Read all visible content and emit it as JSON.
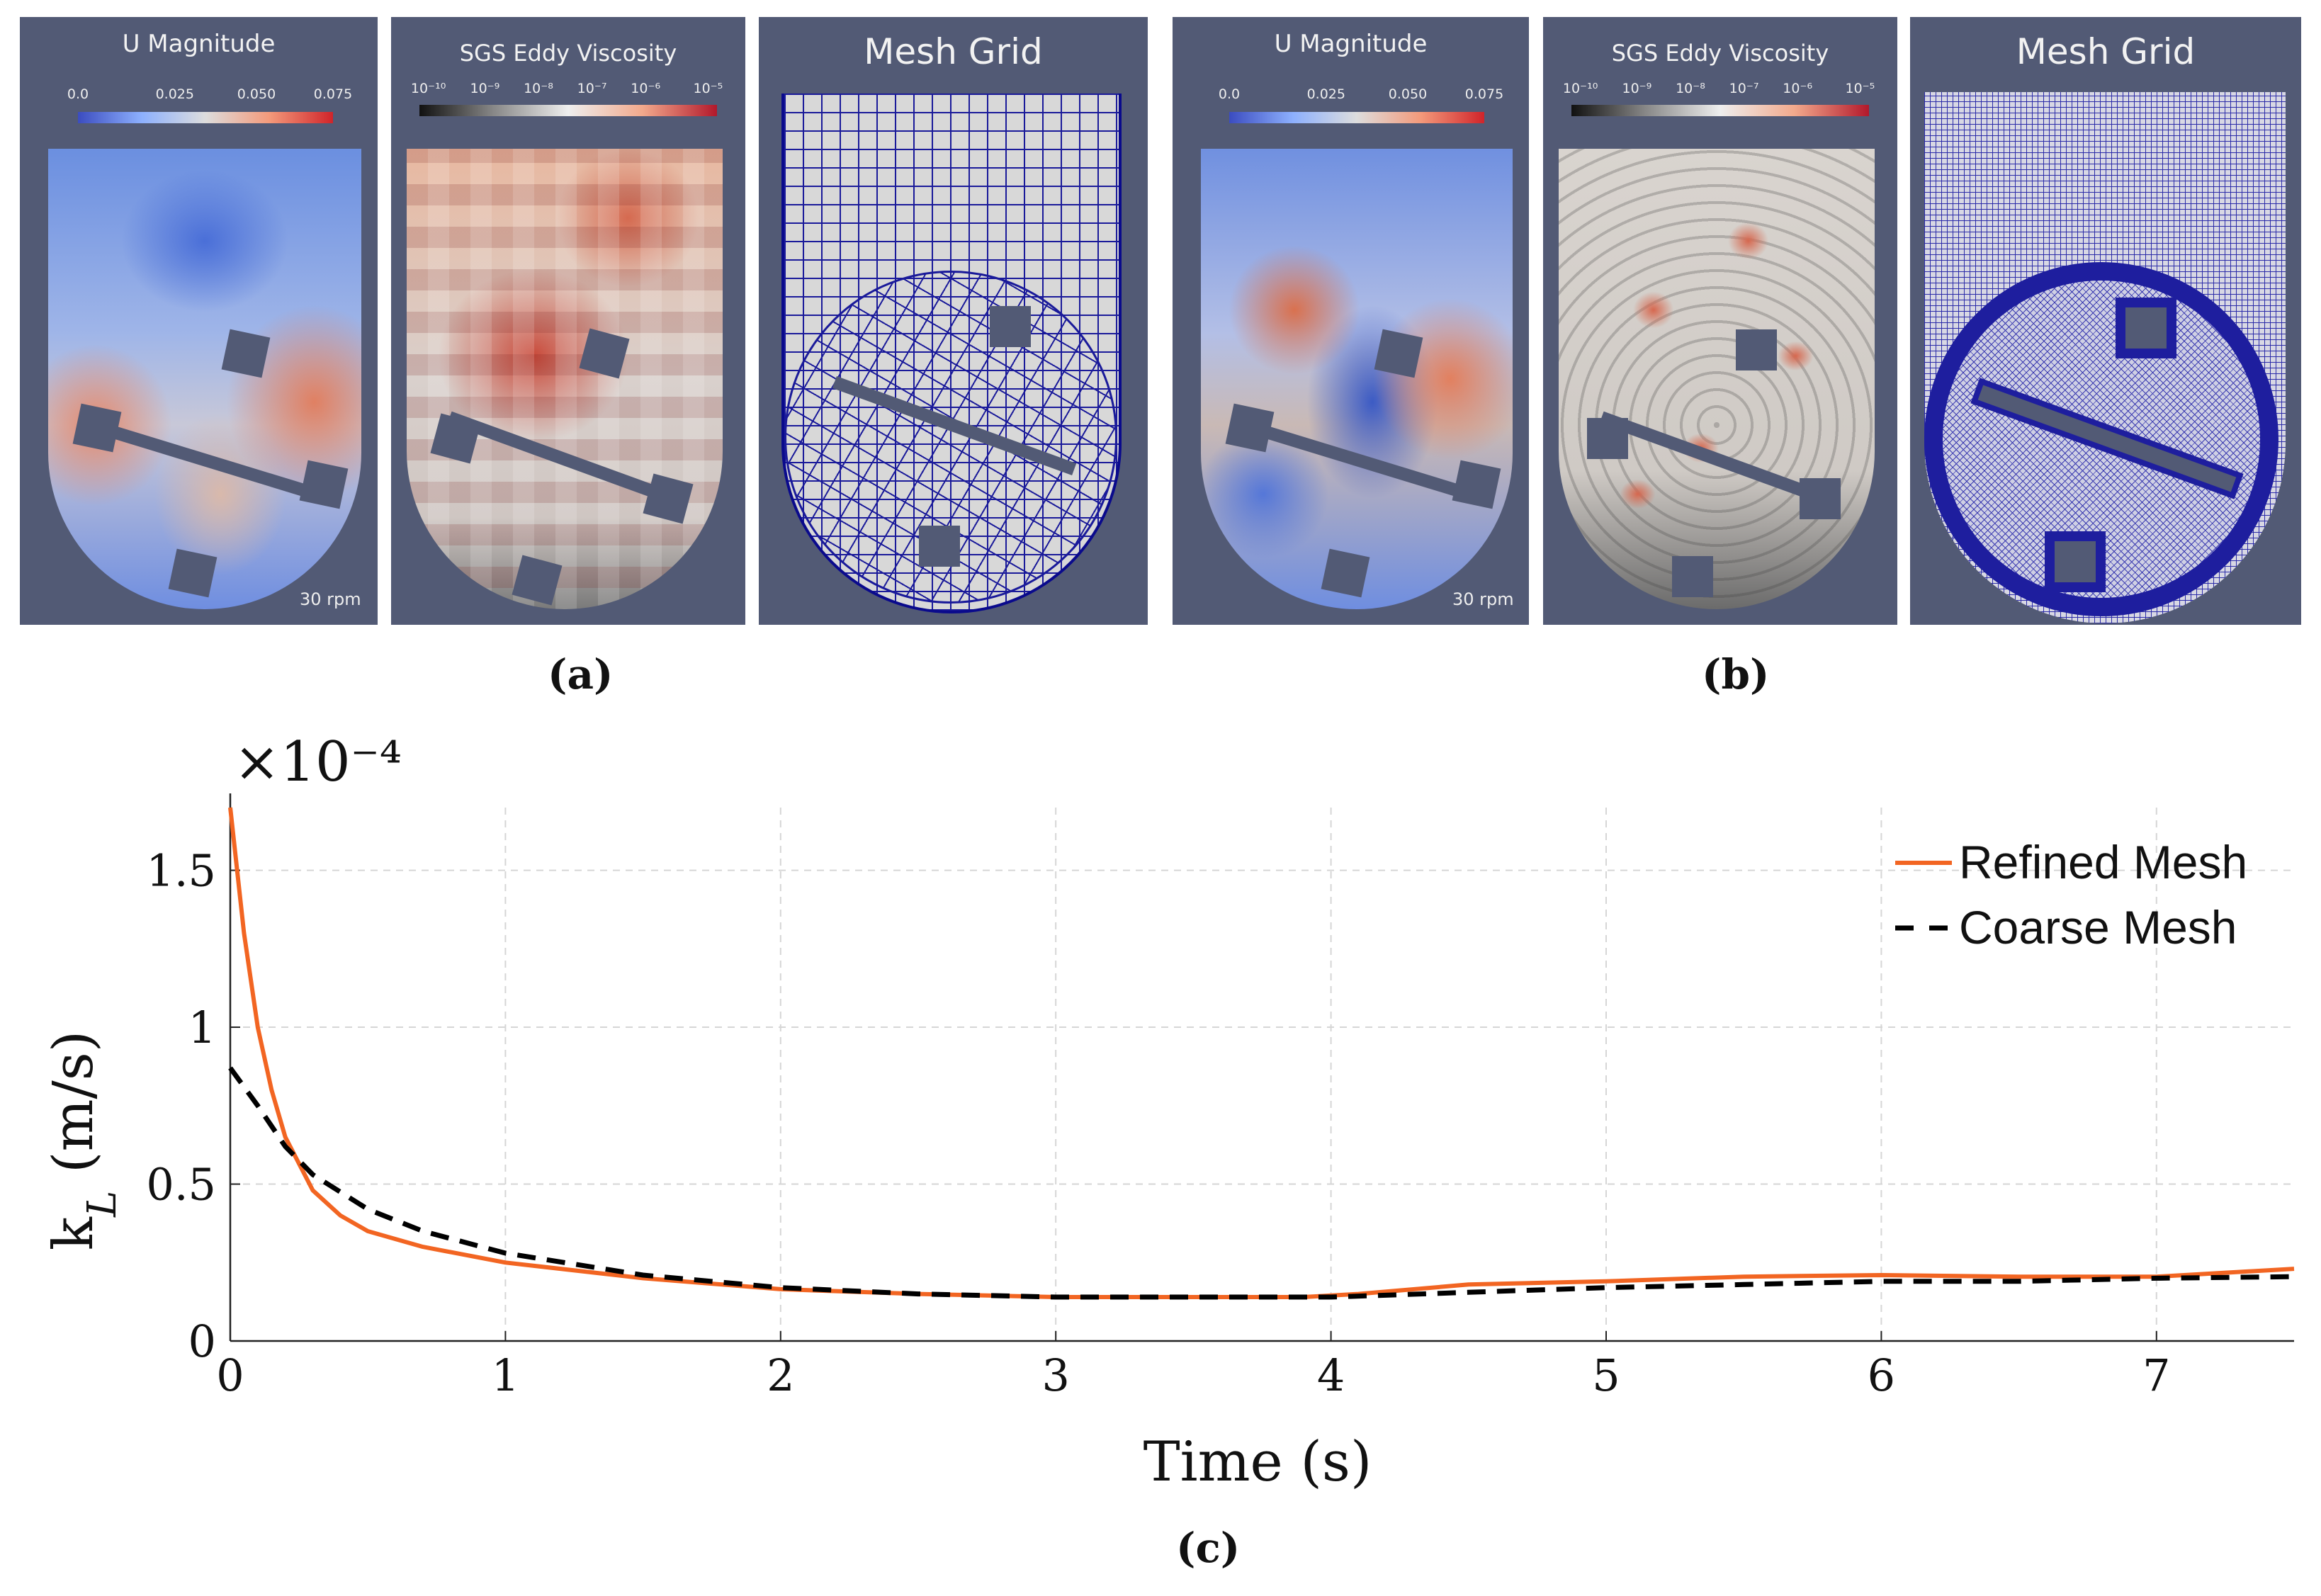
{
  "panels": {
    "a": {
      "u_title": "U Magnitude",
      "u_ticks": [
        "0.0",
        "0.025",
        "0.050",
        "0.075"
      ],
      "sgs_title": "SGS Eddy Viscosity",
      "sgs_ticks": [
        "10⁻¹⁰",
        "10⁻⁹",
        "10⁻⁸",
        "10⁻⁷",
        "10⁻⁶",
        "10⁻⁵"
      ],
      "mesh_title": "Mesh Grid",
      "rpm": "30 rpm",
      "label": "(a)"
    },
    "b": {
      "u_title": "U Magnitude",
      "u_ticks": [
        "0.0",
        "0.025",
        "0.050",
        "0.075"
      ],
      "sgs_title": "SGS Eddy Viscosity",
      "sgs_ticks": [
        "10⁻¹⁰",
        "10⁻⁹",
        "10⁻⁸",
        "10⁻⁷",
        "10⁻⁶",
        "10⁻⁵"
      ],
      "mesh_title": "Mesh Grid",
      "rpm": "30 rpm",
      "label": "(b)"
    }
  },
  "colors": {
    "panel_bg": "#525a75",
    "refined": "#f26522",
    "coarse": "#000000",
    "cmap_low": "#3b4cc0",
    "cmap_high": "#d0242a",
    "mesh_line": "#0a0a8c"
  },
  "chart_data": {
    "type": "line",
    "label": "(c)",
    "multiplier": "×10⁻⁴",
    "xlabel": "Time (s)",
    "ylabel": "k_L (m/s)",
    "xlim": [
      0,
      7.5
    ],
    "ylim": [
      0,
      1.7
    ],
    "xticks": [
      "0",
      "1",
      "2",
      "3",
      "4",
      "5",
      "6",
      "7"
    ],
    "yticks": [
      "0",
      "0.5",
      "1",
      "1.5"
    ],
    "grid": true,
    "legend_position": "top-right",
    "series": [
      {
        "name": "Refined Mesh",
        "style": "solid",
        "x": [
          0,
          0.05,
          0.1,
          0.15,
          0.2,
          0.3,
          0.4,
          0.5,
          0.7,
          1.0,
          1.5,
          2.0,
          2.5,
          3.0,
          3.5,
          3.9,
          4.1,
          4.5,
          5.0,
          5.5,
          6.0,
          6.5,
          7.0,
          7.5
        ],
        "y": [
          1.7,
          1.3,
          1.0,
          0.8,
          0.65,
          0.48,
          0.4,
          0.35,
          0.3,
          0.25,
          0.2,
          0.165,
          0.15,
          0.14,
          0.14,
          0.14,
          0.15,
          0.18,
          0.19,
          0.205,
          0.21,
          0.205,
          0.205,
          0.23
        ]
      },
      {
        "name": "Coarse Mesh",
        "style": "dashed",
        "x": [
          0,
          0.1,
          0.2,
          0.3,
          0.5,
          0.7,
          1.0,
          1.5,
          2.0,
          2.5,
          3.0,
          3.5,
          4.0,
          4.5,
          5.0,
          5.5,
          6.0,
          6.5,
          7.0,
          7.5
        ],
        "y": [
          0.87,
          0.75,
          0.62,
          0.53,
          0.42,
          0.35,
          0.28,
          0.21,
          0.17,
          0.15,
          0.14,
          0.14,
          0.14,
          0.155,
          0.17,
          0.18,
          0.19,
          0.19,
          0.2,
          0.205
        ]
      }
    ]
  }
}
